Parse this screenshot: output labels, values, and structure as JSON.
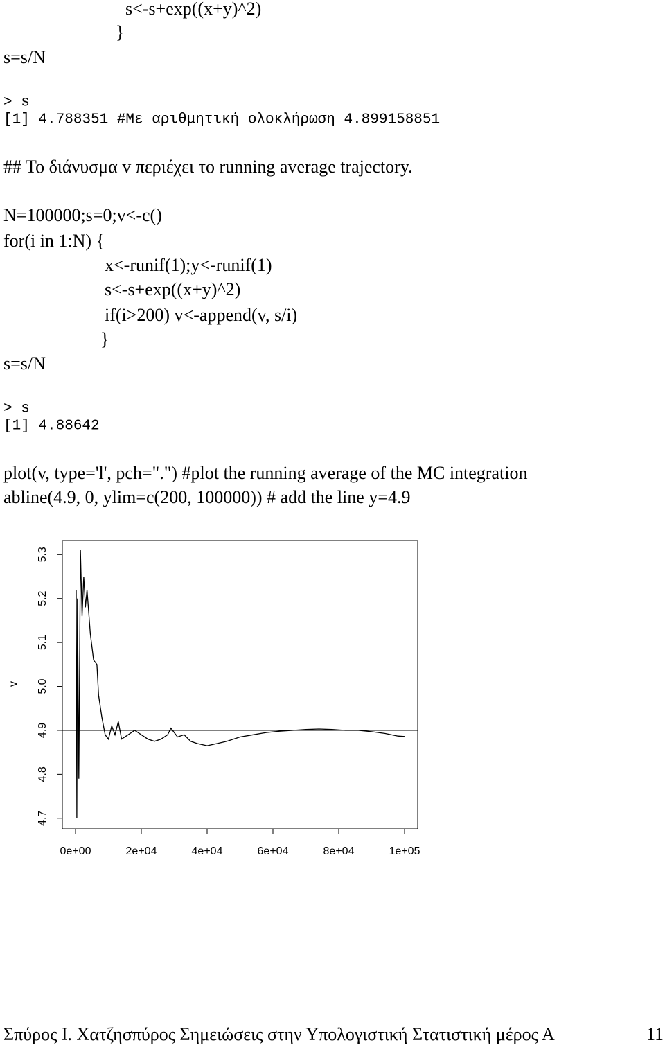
{
  "document": {
    "lines": [
      "s<-s+exp((x+y)^2)",
      "}",
      "s=s/N",
      "> s",
      "[1] 4.788351 #Με αριθμητική ολοκλήρωση 4.899158851",
      "## Το διάνυσμα v περιέχει το running average trajectory.",
      "N=100000;s=0;v<-c()",
      "for(i in 1:N) {",
      "x<-runif(1);y<-runif(1)",
      "s<-s+exp((x+y)^2)",
      "if(i>200) v<-append(v, s/i)",
      "}",
      "s=s/N",
      "> s",
      "[1] 4.88642",
      "plot(v, type='l', pch=\".\") #plot the running average of the MC integration",
      "abline(4.9, 0, ylim=c(200, 100000)) # add the line y=4.9"
    ]
  },
  "chart_data": {
    "type": "line",
    "ylabel": "v",
    "color": "#000000",
    "hline": 4.9,
    "x": [
      200,
      400,
      600,
      1000,
      1500,
      2000,
      2500,
      3000,
      3500,
      4500,
      5500,
      6500,
      7000,
      8000,
      9000,
      10000,
      11000,
      12000,
      13000,
      14000,
      16000,
      18000,
      20000,
      22000,
      24000,
      26000,
      28000,
      29000,
      31000,
      33000,
      35000,
      37000,
      40000,
      43000,
      46000,
      50000,
      54000,
      58000,
      62000,
      66000,
      70000,
      74000,
      78000,
      82000,
      86000,
      90000,
      94000,
      98000,
      100000
    ],
    "series": [
      {
        "values": [
          5.22,
          4.7,
          5.2,
          4.79,
          5.31,
          5.16,
          5.25,
          5.18,
          5.22,
          5.12,
          5.06,
          5.05,
          4.98,
          4.93,
          4.89,
          4.88,
          4.91,
          4.89,
          4.92,
          4.88,
          4.89,
          4.9,
          4.89,
          4.88,
          4.875,
          4.88,
          4.89,
          4.905,
          4.885,
          4.89,
          4.875,
          4.87,
          4.865,
          4.87,
          4.875,
          4.885,
          4.89,
          4.895,
          4.898,
          4.9,
          4.902,
          4.903,
          4.902,
          4.9,
          4.9,
          4.897,
          4.893,
          4.887,
          4.886
        ]
      }
    ],
    "xlim": [
      -4000,
      104000
    ],
    "ylim": [
      4.676,
      5.332
    ],
    "xticks": [
      {
        "value": 0,
        "label": "0e+00"
      },
      {
        "value": 20000,
        "label": "2e+04"
      },
      {
        "value": 40000,
        "label": "4e+04"
      },
      {
        "value": 60000,
        "label": "6e+04"
      },
      {
        "value": 80000,
        "label": "8e+04"
      },
      {
        "value": 100000,
        "label": "1e+05"
      }
    ],
    "yticks": [
      4.7,
      4.8,
      4.9,
      {
        "value": 5,
        "label": "5.0"
      },
      5.1,
      5.2,
      5.3
    ]
  },
  "footer": {
    "text": "Σπύρος Ι. Χατζησπύρος Σημειώσεις στην Υπολογιστική Στατιστική μέρος Α",
    "page": "11"
  }
}
